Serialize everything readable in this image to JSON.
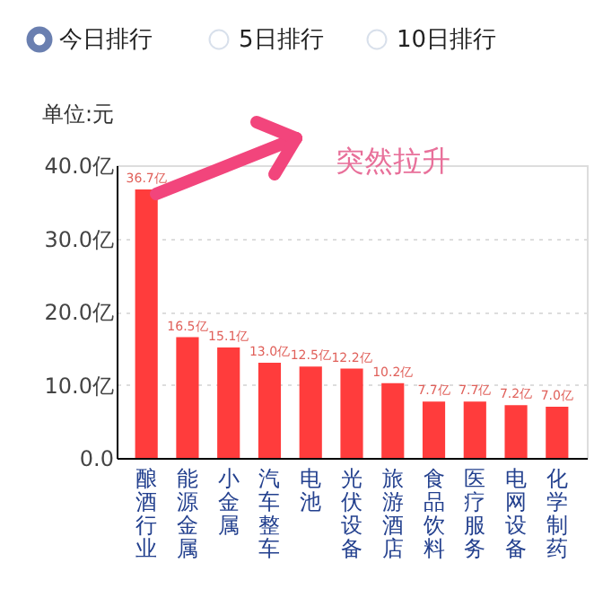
{
  "chart_data": {
    "type": "bar",
    "ylabel": "单位:元",
    "categories": [
      "酿酒行业",
      "能源金属",
      "小金属",
      "汽车整车",
      "电池",
      "光伏设备",
      "旅游酒店",
      "食品饮料",
      "医疗服务",
      "电网设备",
      "化学制药"
    ],
    "values": [
      36.7,
      16.5,
      15.1,
      13.0,
      12.5,
      12.2,
      10.2,
      7.7,
      7.7,
      7.2,
      7.0
    ],
    "value_labels": [
      "36.7亿",
      "16.5亿",
      "15.1亿",
      "13.0亿",
      "12.5亿",
      "12.2亿",
      "10.2亿",
      "7.7亿",
      "7.7亿",
      "7.2亿",
      "7.0亿"
    ],
    "color": "#ff3c3c",
    "ylim": [
      0,
      40
    ],
    "yticks": [
      {
        "value": 0,
        "label": "0.0"
      },
      {
        "value": 10,
        "label": "10.0亿"
      },
      {
        "value": 20,
        "label": "20.0亿"
      },
      {
        "value": 30,
        "label": "30.0亿"
      },
      {
        "value": 40,
        "label": "40.0亿"
      }
    ],
    "grid": "y",
    "annotations": [
      "今日排行",
      "5日排行",
      "10日排行",
      "突然拉升"
    ]
  }
}
